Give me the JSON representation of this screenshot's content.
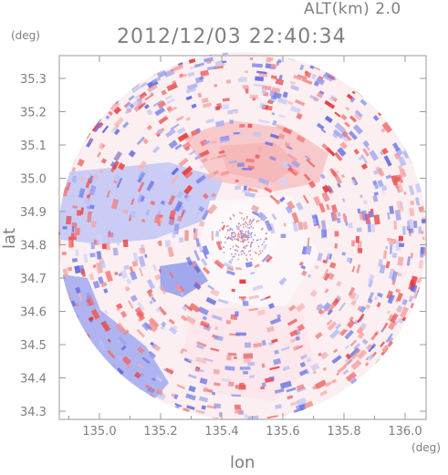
{
  "header": {
    "altitude_label": "ALT(km) 2.0",
    "datetime": "2012/12/03 22:40:34",
    "y_unit": "(deg)",
    "x_unit": "(deg)"
  },
  "axes": {
    "xlabel": "lon",
    "ylabel": "lat",
    "x_ticks": [
      "135.0",
      "135.2",
      "135.4",
      "135.6",
      "135.8",
      "136.0"
    ],
    "y_ticks": [
      "35.3",
      "35.2",
      "35.1",
      "35.0",
      "34.9",
      "34.8",
      "34.7",
      "34.6",
      "34.5",
      "34.4",
      "34.3"
    ]
  },
  "colors": {
    "positive": "#f07a7a",
    "negative": "#7a84f0",
    "neutral": "#fdf3f4",
    "frame": "#9a9a9a",
    "text": "#7f7f7f"
  }
}
